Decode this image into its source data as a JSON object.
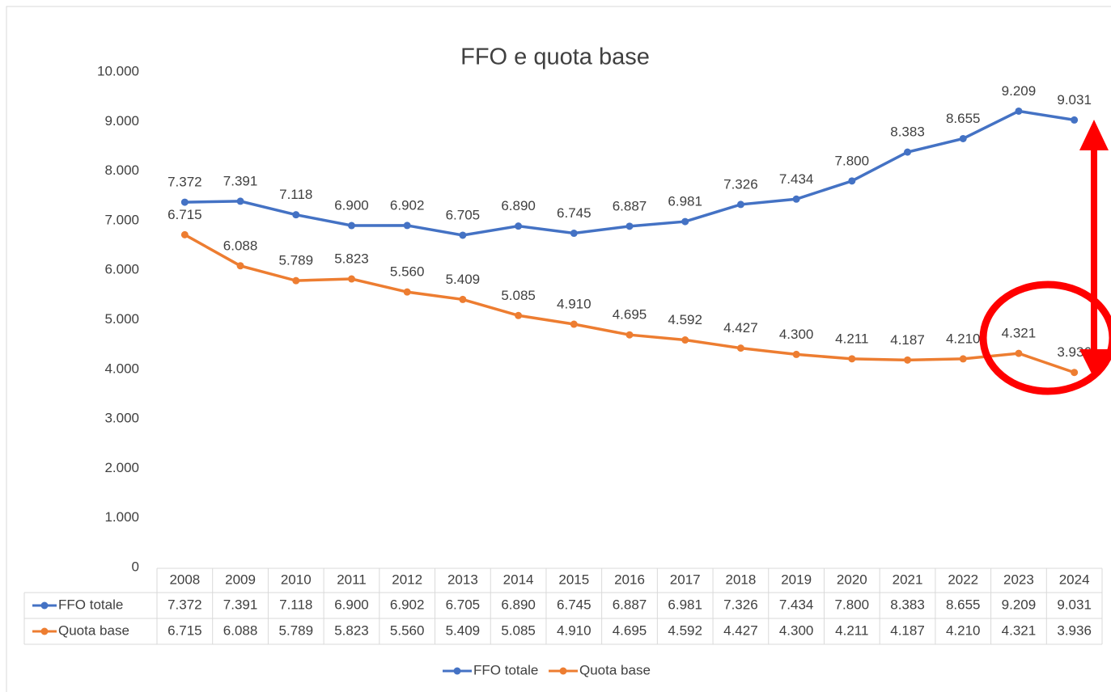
{
  "chart_data": {
    "type": "line",
    "title": "FFO e quota base",
    "categories": [
      "2008",
      "2009",
      "2010",
      "2011",
      "2012",
      "2013",
      "2014",
      "2015",
      "2016",
      "2017",
      "2018",
      "2019",
      "2020",
      "2021",
      "2022",
      "2023",
      "2024"
    ],
    "series": [
      {
        "name": "FFO totale",
        "color": "#4472c4",
        "values": [
          7372,
          7391,
          7118,
          6900,
          6902,
          6705,
          6890,
          6745,
          6887,
          6981,
          7326,
          7434,
          7800,
          8383,
          8655,
          9209,
          9031
        ],
        "value_labels": [
          "7.372",
          "7.391",
          "7.118",
          "6.900",
          "6.902",
          "6.705",
          "6.890",
          "6.745",
          "6.887",
          "6.981",
          "7.326",
          "7.434",
          "7.800",
          "8.383",
          "8.655",
          "9.209",
          "9.031"
        ]
      },
      {
        "name": "Quota base",
        "color": "#ed7d31",
        "values": [
          6715,
          6088,
          5789,
          5823,
          5560,
          5409,
          5085,
          4910,
          4695,
          4592,
          4427,
          4300,
          4211,
          4187,
          4210,
          4321,
          3936
        ],
        "value_labels": [
          "6.715",
          "6.088",
          "5.789",
          "5.823",
          "5.560",
          "5.409",
          "5.085",
          "4.910",
          "4.695",
          "4.592",
          "4.427",
          "4.300",
          "4.211",
          "4.187",
          "4.210",
          "4.321",
          "3.936"
        ]
      }
    ],
    "ylim": [
      0,
      10000
    ],
    "yticks": [
      0,
      {
        "value": 1000,
        "label": "1.000"
      },
      {
        "value": 2000,
        "label": "2.000"
      },
      {
        "value": 3000,
        "label": "3.000"
      },
      {
        "value": 4000,
        "label": "4.000"
      },
      {
        "value": 5000,
        "label": "5.000"
      },
      {
        "value": 6000,
        "label": "6.000"
      },
      {
        "value": 7000,
        "label": "7.000"
      },
      {
        "value": 8000,
        "label": "8.000"
      },
      {
        "value": 9000,
        "label": "9.000"
      },
      {
        "value": 10000,
        "label": "10.000"
      }
    ],
    "grid": false
  }
}
